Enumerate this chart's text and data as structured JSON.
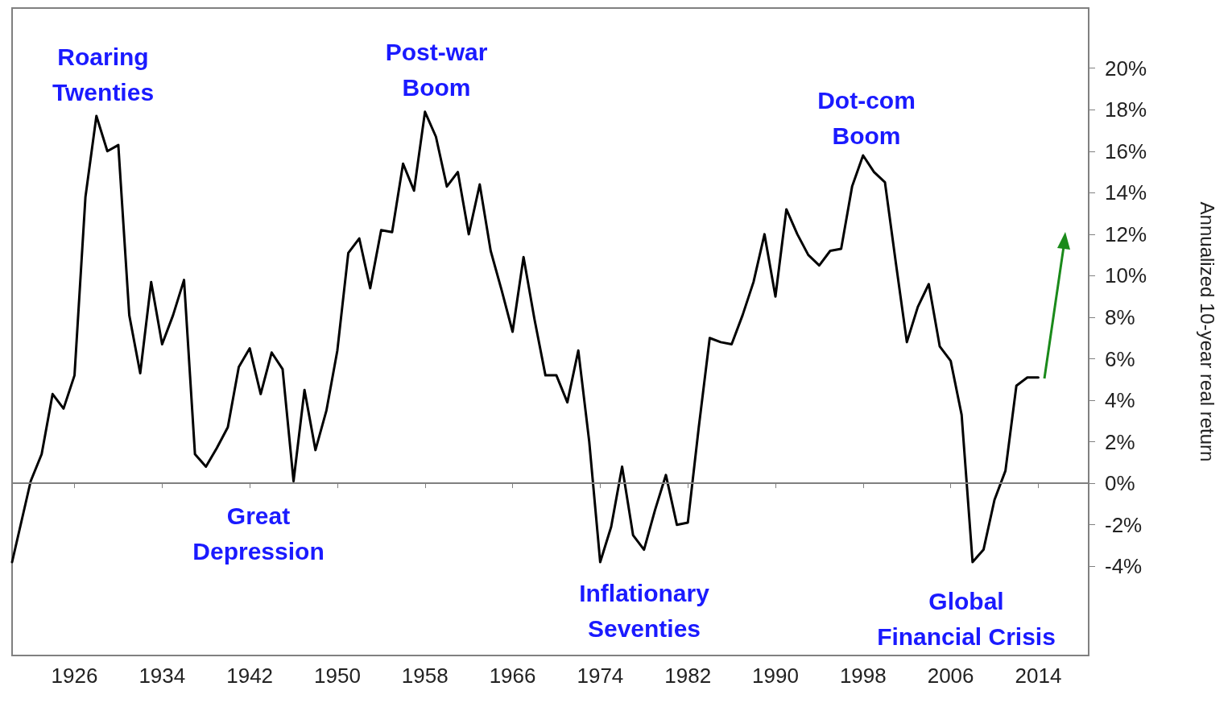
{
  "chart_data": {
    "type": "line",
    "ylabel": "Annualized 10-year real return",
    "x": [
      1920.3,
      1922,
      1923,
      1924,
      1925,
      1926,
      1927,
      1928,
      1929,
      1930,
      1931,
      1932,
      1933,
      1934,
      1935,
      1936,
      1937,
      1938,
      1939,
      1940,
      1941,
      1942,
      1943,
      1944,
      1945,
      1946,
      1947,
      1948,
      1949,
      1950,
      1951,
      1952,
      1953,
      1954,
      1955,
      1956,
      1957,
      1958,
      1959,
      1960,
      1961,
      1962,
      1963,
      1964,
      1965,
      1966,
      1967,
      1968,
      1969,
      1970,
      1971,
      1972,
      1973,
      1974,
      1975,
      1976,
      1977,
      1978,
      1979,
      1980,
      1981,
      1982,
      1983,
      1984,
      1985,
      1986,
      1987,
      1988,
      1989,
      1990,
      1991,
      1992,
      1993,
      1994,
      1995,
      1996,
      1997,
      1998,
      1999,
      2000,
      2001,
      2002,
      2003,
      2004,
      2005,
      2006,
      2007,
      2008,
      2009,
      2010,
      2011,
      2012,
      2013,
      2014
    ],
    "series": [
      {
        "color": "#000000",
        "values": [
          -3.8,
          0.1,
          1.4,
          4.3,
          3.6,
          5.2,
          13.8,
          17.7,
          16.0,
          16.3,
          8.1,
          5.3,
          9.7,
          6.7,
          8.1,
          9.8,
          1.4,
          0.8,
          1.7,
          2.7,
          5.6,
          6.5,
          4.3,
          6.3,
          5.5,
          0.1,
          4.5,
          1.6,
          3.5,
          6.4,
          11.1,
          11.8,
          9.4,
          12.2,
          12.1,
          15.4,
          14.1,
          17.9,
          16.7,
          14.3,
          15.0,
          12.0,
          14.4,
          11.2,
          9.3,
          7.3,
          10.9,
          7.9,
          5.2,
          5.2,
          3.9,
          6.4,
          2.0,
          -3.8,
          -2.1,
          0.8,
          -2.5,
          -3.2,
          -1.3,
          0.4,
          -2.0,
          -1.9,
          2.7,
          7.0,
          6.8,
          6.7,
          8.1,
          9.7,
          12.0,
          9.0,
          13.2,
          12.0,
          11.0,
          10.5,
          11.2,
          11.3,
          14.3,
          15.8,
          15.0,
          14.5,
          10.6,
          6.8,
          8.5,
          9.6,
          6.6,
          5.9,
          3.3,
          -3.8,
          -3.2,
          -0.8,
          0.6,
          4.7,
          5.1,
          5.1
        ]
      }
    ],
    "xlim": [
      1920.3,
      2018.6
    ],
    "xticks": [
      1926,
      1934,
      1942,
      1950,
      1958,
      1966,
      1974,
      1982,
      1990,
      1998,
      2006,
      2014
    ],
    "ylim": [
      -8.3,
      22.9
    ],
    "yticks": [
      {
        "value": -4,
        "label": "-4%"
      },
      {
        "value": -2,
        "label": "-2%"
      },
      {
        "value": 0,
        "label": "0%"
      },
      {
        "value": 2,
        "label": "2%"
      },
      {
        "value": 4,
        "label": "4%"
      },
      {
        "value": 6,
        "label": "6%"
      },
      {
        "value": 8,
        "label": "8%"
      },
      {
        "value": 10,
        "label": "10%"
      },
      {
        "value": 12,
        "label": "12%"
      },
      {
        "value": 14,
        "label": "14%"
      },
      {
        "value": 16,
        "label": "16%"
      },
      {
        "value": 18,
        "label": "18%"
      },
      {
        "value": 20,
        "label": "20%"
      }
    ],
    "ref_lines": [
      {
        "axis": "y",
        "value": 0,
        "color": "#808080"
      }
    ],
    "annotations": [
      "Roaring\nTwenties",
      "Great\nDepression",
      "Post-war\nBoom",
      "Inflationary\nSeventies",
      "Dot-com\nBoom",
      "Global\nFinancial Crisis"
    ],
    "grid": false,
    "marker": "none",
    "line_style": "solid"
  }
}
